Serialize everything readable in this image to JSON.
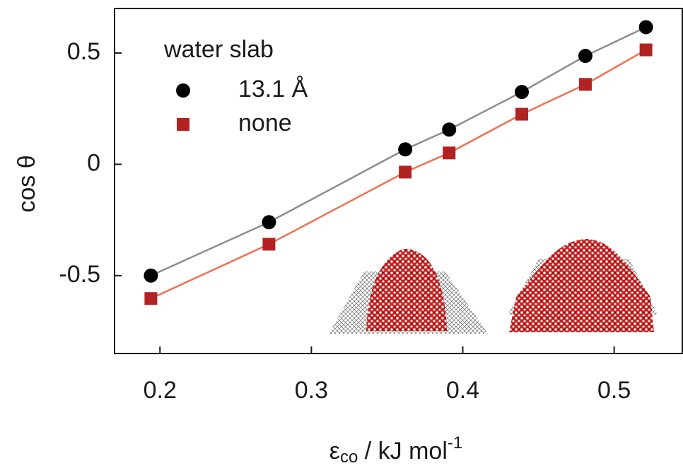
{
  "chart_data": {
    "type": "scatter",
    "y_label": "cos θ",
    "x_label": {
      "symbol": "ε",
      "subscript": "co",
      "unit": " / kJ mol",
      "superscript": "-1"
    },
    "legend_title": "water slab",
    "legend": "upper left",
    "connect": true,
    "series": [
      {
        "name": "13.1 Å",
        "color": "#000000",
        "line_color": "#8c8c8c",
        "marker": "circle",
        "x": [
          0.194,
          0.272,
          0.362,
          0.391,
          0.439,
          0.481,
          0.521
        ],
        "values": [
          -0.5,
          -0.26,
          0.067,
          0.156,
          0.325,
          0.487,
          0.616
        ]
      },
      {
        "name": "none",
        "color": "#b22222",
        "line_color": "#f07050",
        "marker": "square",
        "x": [
          0.194,
          0.272,
          0.362,
          0.391,
          0.439,
          0.481,
          0.521
        ],
        "values": [
          -0.603,
          -0.359,
          -0.035,
          0.051,
          0.225,
          0.359,
          0.514
        ]
      }
    ],
    "xlim": [
      0.17,
      0.545
    ],
    "ylim": [
      -0.85,
      0.7
    ],
    "xticks": [
      0.2,
      0.3,
      0.4,
      0.5
    ],
    "yticks": [
      -0.5,
      0,
      0.5
    ]
  }
}
